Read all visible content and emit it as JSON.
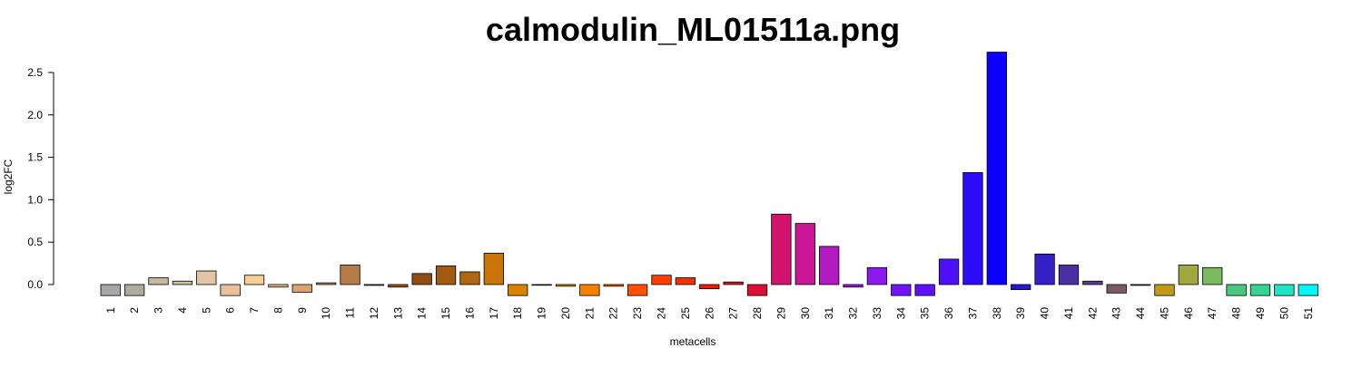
{
  "chart_data": {
    "type": "bar",
    "title": "calmodulin_ML01511a.png",
    "xlabel": "metacells",
    "ylabel": "log2FC",
    "ylim": [
      -0.15,
      2.75
    ],
    "yticks": [
      0.0,
      0.5,
      1.0,
      1.5,
      2.0,
      2.5
    ],
    "ytick_labels": [
      "0.0",
      "0.5",
      "1.0",
      "1.5",
      "2.0",
      "2.5"
    ],
    "grid": false,
    "legend": "none",
    "categories": [
      "1",
      "2",
      "3",
      "4",
      "5",
      "6",
      "7",
      "8",
      "9",
      "10",
      "11",
      "12",
      "13",
      "14",
      "15",
      "16",
      "17",
      "18",
      "19",
      "20",
      "21",
      "22",
      "23",
      "24",
      "25",
      "26",
      "27",
      "28",
      "29",
      "30",
      "31",
      "32",
      "33",
      "34",
      "35",
      "36",
      "37",
      "38",
      "39",
      "40",
      "41",
      "42",
      "43",
      "44",
      "45",
      "46",
      "47",
      "48",
      "49",
      "50",
      "51"
    ],
    "values": [
      -0.13,
      -0.13,
      0.08,
      0.04,
      0.16,
      -0.13,
      0.11,
      -0.03,
      -0.09,
      0.02,
      0.23,
      -0.01,
      -0.03,
      0.13,
      0.22,
      0.15,
      0.37,
      -0.13,
      0.0,
      -0.02,
      -0.13,
      -0.02,
      -0.13,
      0.11,
      0.08,
      -0.05,
      0.03,
      -0.13,
      0.83,
      0.72,
      0.45,
      -0.03,
      0.2,
      -0.13,
      -0.13,
      0.3,
      1.32,
      2.74,
      -0.06,
      0.36,
      0.23,
      0.04,
      -0.1,
      -0.01,
      -0.13,
      0.23,
      0.2,
      -0.13,
      -0.13,
      -0.13,
      -0.13
    ],
    "colors": [
      "#a7a7a7",
      "#b0aa9e",
      "#c8b8a0",
      "#d3bf9c",
      "#e3c4a4",
      "#e8c09a",
      "#f5cf94",
      "#e9b887",
      "#dca36f",
      "#c58c5a",
      "#b57b48",
      "#a86a33",
      "#9a5a25",
      "#924c13",
      "#a35a12",
      "#b06510",
      "#c87408",
      "#d88200",
      "#e48a00",
      "#ef8e00",
      "#f77f00",
      "#fb6800",
      "#fd5000",
      "#ff3d00",
      "#f63005",
      "#ec1c0c",
      "#e11618",
      "#da0f33",
      "#d2126c",
      "#c91596",
      "#b41ac2",
      "#9a1ade",
      "#8d1aed",
      "#7015f5",
      "#5f10f8",
      "#4d0ef8",
      "#2d0bfb",
      "#0b00ff",
      "#2218dc",
      "#3320c6",
      "#4a2fa2",
      "#5b3c8a",
      "#7a5a60",
      "#6f6e5d",
      "#c09a18",
      "#a0a83e",
      "#7cb961",
      "#48c87e",
      "#37d391",
      "#21e3c8",
      "#00f7f9"
    ]
  }
}
